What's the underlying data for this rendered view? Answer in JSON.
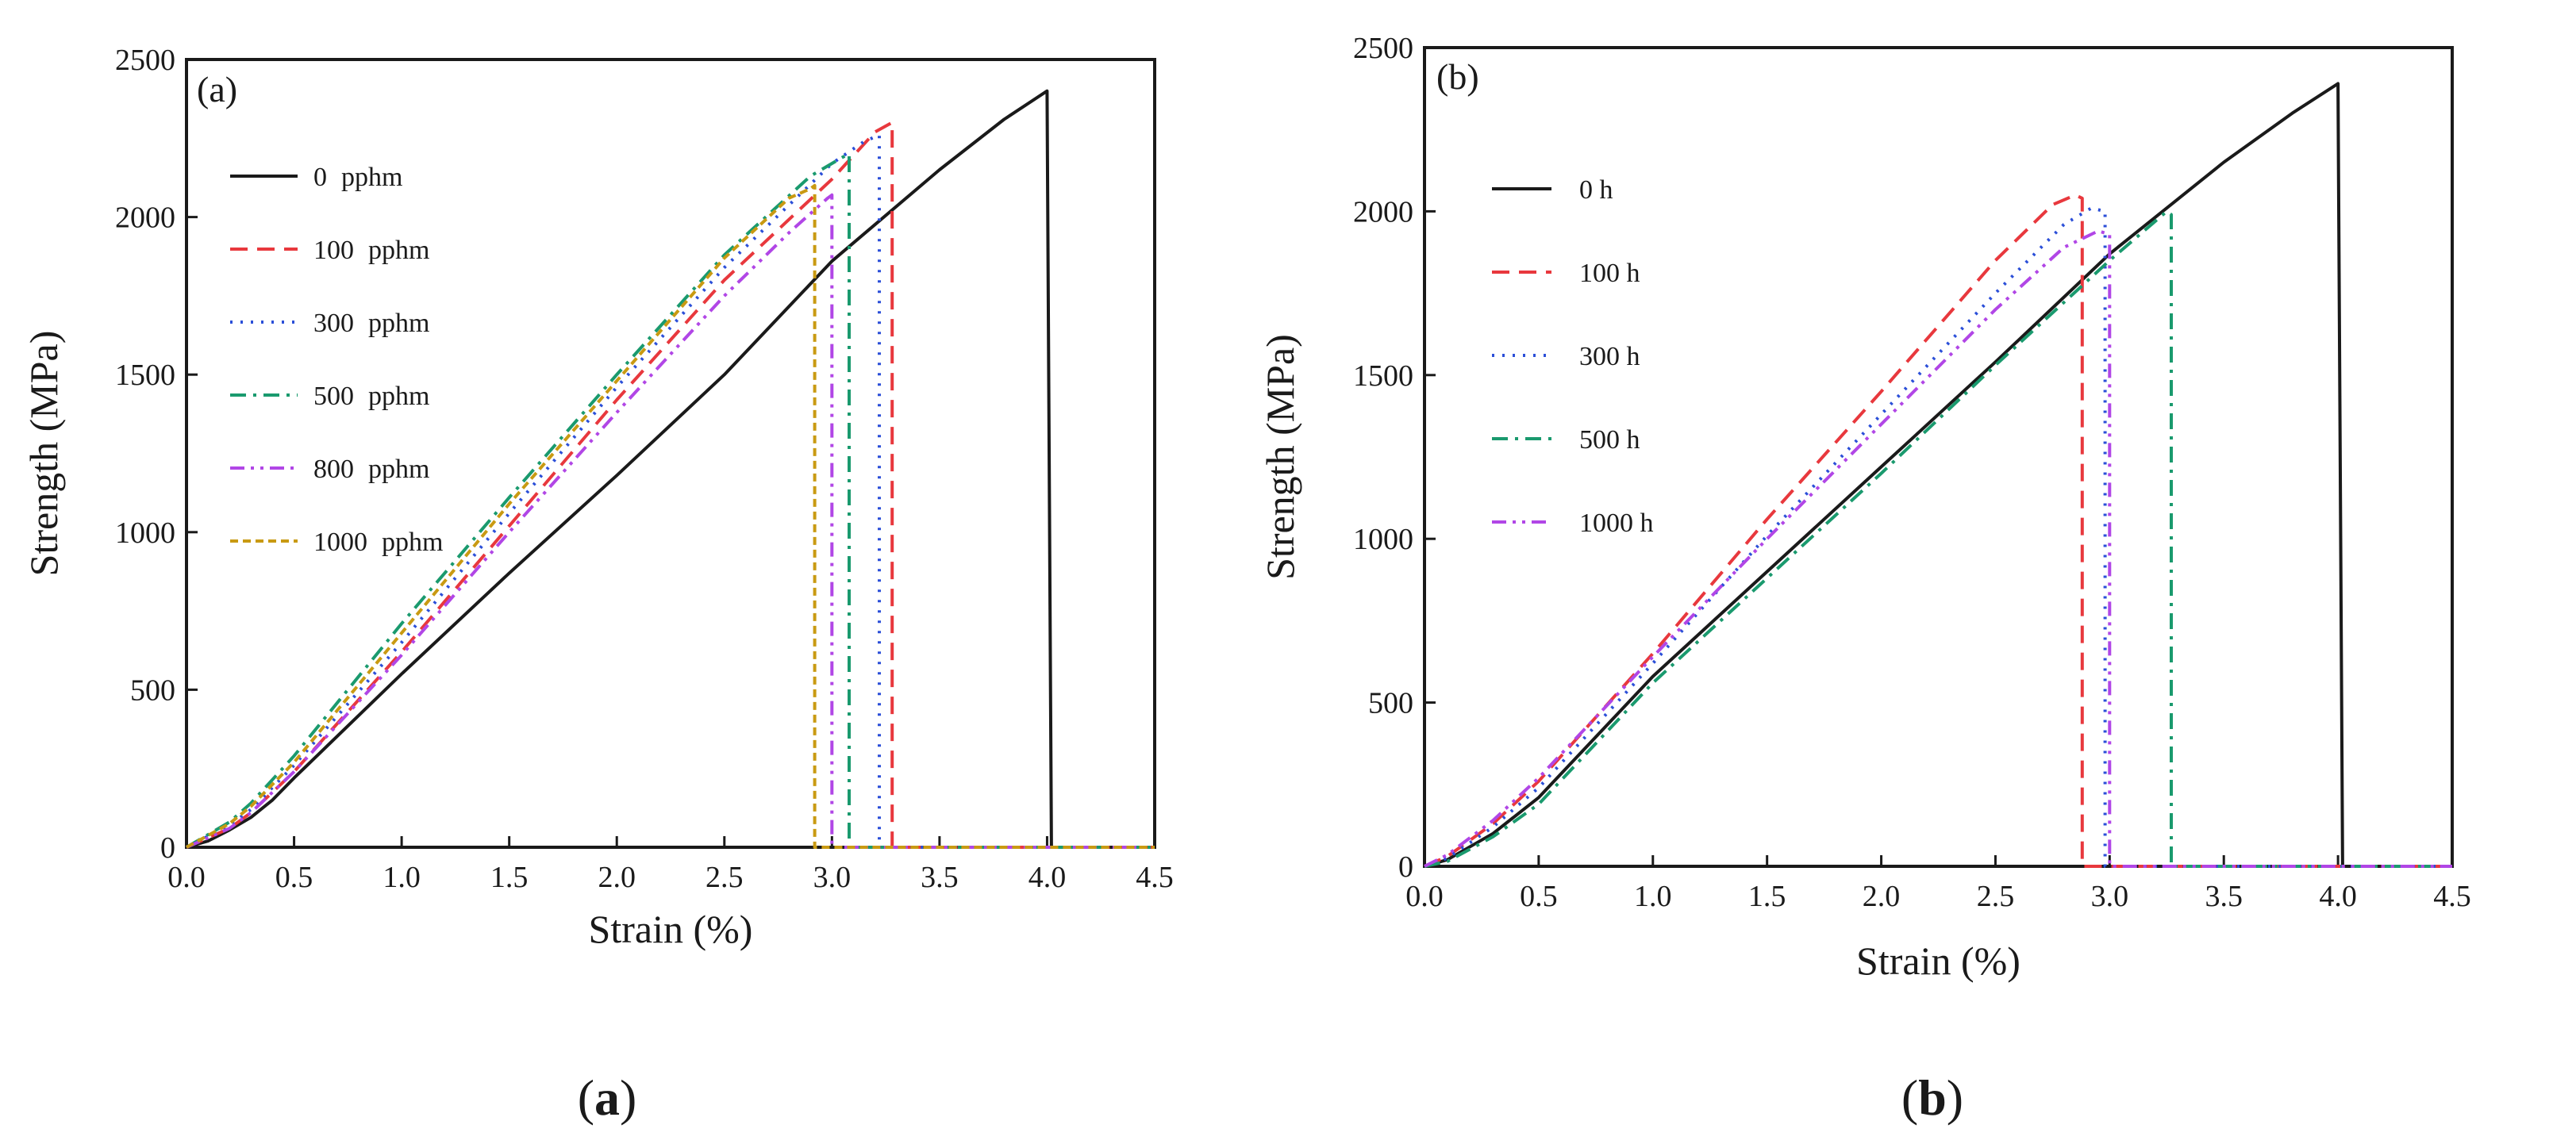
{
  "chart_data": [
    {
      "type": "line",
      "panel_label": "(a)",
      "caption_open": "(",
      "caption_letter": "a",
      "caption_close": ")",
      "xlabel": "Strain (%)",
      "ylabel": "Strength (MPa)",
      "xlim": [
        0,
        4.5
      ],
      "ylim": [
        0,
        2500
      ],
      "xticks": [
        "0.0",
        "0.5",
        "1.0",
        "1.5",
        "2.0",
        "2.5",
        "3.0",
        "3.5",
        "4.0",
        "4.5"
      ],
      "yticks": [
        "0",
        "500",
        "1000",
        "1500",
        "2000",
        "2500"
      ],
      "legend_position": "upper-left",
      "series": [
        {
          "name": "0",
          "unit": "pphm",
          "color": "#1a1a1a",
          "dash": "solid",
          "x": [
            0,
            0.1,
            0.2,
            0.3,
            0.4,
            0.5,
            1.0,
            1.5,
            2.0,
            2.5,
            3.0,
            3.5,
            3.8,
            4.0,
            4.02,
            4.5
          ],
          "y": [
            0,
            20,
            55,
            95,
            150,
            220,
            550,
            870,
            1180,
            1500,
            1860,
            2150,
            2310,
            2400,
            0,
            0
          ]
        },
        {
          "name": "100",
          "unit": "pphm",
          "color": "#e8383d",
          "dash": "dash",
          "x": [
            0,
            0.2,
            0.3,
            0.5,
            1.0,
            1.5,
            2.0,
            2.5,
            3.0,
            3.2,
            3.28,
            3.28,
            4.5
          ],
          "y": [
            0,
            60,
            110,
            240,
            620,
            1020,
            1420,
            1800,
            2120,
            2270,
            2300,
            0,
            0
          ]
        },
        {
          "name": "300",
          "unit": "pphm",
          "color": "#2b4fd8",
          "dash": "dot",
          "x": [
            0,
            0.2,
            0.3,
            0.5,
            1.0,
            1.5,
            2.0,
            2.5,
            3.0,
            3.15,
            3.22,
            3.22,
            4.5
          ],
          "y": [
            0,
            70,
            120,
            260,
            650,
            1060,
            1460,
            1840,
            2170,
            2240,
            2260,
            0,
            0
          ]
        },
        {
          "name": "500",
          "unit": "pphm",
          "color": "#1a9a6e",
          "dash": "dash-dot",
          "x": [
            0,
            0.2,
            0.3,
            0.5,
            1.0,
            1.5,
            2.0,
            2.5,
            2.9,
            3.05,
            3.08,
            3.08,
            4.5
          ],
          "y": [
            0,
            80,
            140,
            290,
            710,
            1110,
            1500,
            1880,
            2130,
            2190,
            2200,
            0,
            0
          ]
        },
        {
          "name": "800",
          "unit": "pphm",
          "color": "#b146e6",
          "dash": "dash-dot-dot",
          "x": [
            0,
            0.2,
            0.3,
            0.5,
            1.0,
            1.5,
            2.0,
            2.5,
            2.8,
            2.98,
            3.0,
            3.0,
            4.5
          ],
          "y": [
            0,
            60,
            110,
            240,
            610,
            1000,
            1380,
            1750,
            1950,
            2060,
            2070,
            0,
            0
          ]
        },
        {
          "name": "1000",
          "unit": "pphm",
          "color": "#c99a12",
          "dash": "short-dash",
          "x": [
            0,
            0.2,
            0.3,
            0.5,
            1.0,
            1.5,
            2.0,
            2.5,
            2.8,
            2.9,
            2.92,
            2.92,
            4.5
          ],
          "y": [
            0,
            75,
            130,
            270,
            680,
            1090,
            1480,
            1870,
            2060,
            2090,
            2100,
            0,
            0
          ]
        }
      ]
    },
    {
      "type": "line",
      "panel_label": "(b)",
      "caption_open": "(",
      "caption_letter": "b",
      "caption_close": ")",
      "xlabel": "Strain (%)",
      "ylabel": "Strength (MPa)",
      "xlim": [
        0,
        4.5
      ],
      "ylim": [
        0,
        2500
      ],
      "xticks": [
        "0.0",
        "0.5",
        "1.0",
        "1.5",
        "2.0",
        "2.5",
        "3.0",
        "3.5",
        "4.0",
        "4.5"
      ],
      "yticks": [
        "0",
        "500",
        "1000",
        "1500",
        "2000",
        "2500"
      ],
      "legend_position": "upper-left",
      "series": [
        {
          "name": "0 h",
          "unit": "",
          "color": "#1a1a1a",
          "dash": "solid",
          "x": [
            0,
            0.1,
            0.3,
            0.5,
            1.0,
            1.5,
            2.0,
            2.5,
            3.0,
            3.5,
            3.8,
            4.0,
            4.02,
            4.5
          ],
          "y": [
            0,
            20,
            100,
            210,
            580,
            900,
            1220,
            1540,
            1870,
            2150,
            2300,
            2390,
            0,
            0
          ]
        },
        {
          "name": "100 h",
          "unit": "",
          "color": "#e8383d",
          "dash": "dash",
          "x": [
            0,
            0.1,
            0.3,
            0.5,
            1.0,
            1.5,
            2.0,
            2.5,
            2.75,
            2.85,
            2.88,
            2.88,
            4.5
          ],
          "y": [
            0,
            30,
            130,
            260,
            650,
            1060,
            1450,
            1850,
            2020,
            2050,
            2040,
            0,
            0
          ]
        },
        {
          "name": "300 h",
          "unit": "",
          "color": "#2b4fd8",
          "dash": "dot",
          "x": [
            0,
            0.1,
            0.3,
            0.5,
            1.0,
            1.5,
            2.0,
            2.5,
            2.8,
            2.92,
            2.98,
            2.98,
            4.5
          ],
          "y": [
            0,
            25,
            120,
            240,
            620,
            1010,
            1380,
            1750,
            1960,
            2010,
            2000,
            0,
            0
          ]
        },
        {
          "name": "500 h",
          "unit": "",
          "color": "#1a9a6e",
          "dash": "dash-dot",
          "x": [
            0,
            0.1,
            0.3,
            0.5,
            1.0,
            1.5,
            2.0,
            2.5,
            3.0,
            3.25,
            3.27,
            3.27,
            4.5
          ],
          "y": [
            0,
            15,
            90,
            190,
            560,
            880,
            1200,
            1530,
            1850,
            2000,
            1990,
            0,
            0
          ]
        },
        {
          "name": "1000 h",
          "unit": "",
          "color": "#b146e6",
          "dash": "dash-dot-dot",
          "x": [
            0,
            0.1,
            0.3,
            0.5,
            1.0,
            1.5,
            2.0,
            2.5,
            2.8,
            2.95,
            3.0,
            3.0,
            4.5
          ],
          "y": [
            0,
            35,
            140,
            270,
            640,
            1000,
            1350,
            1700,
            1890,
            1940,
            1930,
            0,
            0
          ]
        }
      ]
    }
  ]
}
